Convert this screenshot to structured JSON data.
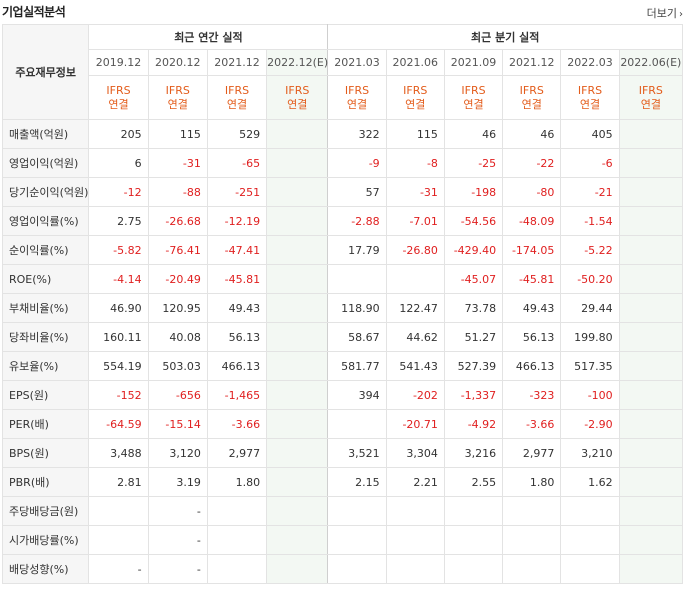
{
  "header": {
    "title": "기업실적분석",
    "more_label": "더보기",
    "more_chevron": "›"
  },
  "table": {
    "label_header": "주요재무정보",
    "annual_group": "최근 연간 실적",
    "quarter_group": "최근 분기 실적",
    "periods": [
      "2019.12",
      "2020.12",
      "2021.12",
      "2022.12(E)",
      "2021.03",
      "2021.06",
      "2021.09",
      "2021.12",
      "2022.03",
      "2022.06(E)"
    ],
    "ifrs_line1": "IFRS",
    "ifrs_line2": "연결",
    "rows": [
      {
        "label": "매출액(억원)",
        "values": [
          "205",
          "115",
          "529",
          "",
          "322",
          "115",
          "46",
          "46",
          "405",
          ""
        ]
      },
      {
        "label": "영업이익(억원)",
        "values": [
          "6",
          "-31",
          "-65",
          "",
          "-9",
          "-8",
          "-25",
          "-22",
          "-6",
          ""
        ]
      },
      {
        "label": "당기순이익(억원)",
        "values": [
          "-12",
          "-88",
          "-251",
          "",
          "57",
          "-31",
          "-198",
          "-80",
          "-21",
          ""
        ]
      },
      {
        "label": "영업이익률(%)",
        "values": [
          "2.75",
          "-26.68",
          "-12.19",
          "",
          "-2.88",
          "-7.01",
          "-54.56",
          "-48.09",
          "-1.54",
          ""
        ]
      },
      {
        "label": "순이익률(%)",
        "values": [
          "-5.82",
          "-76.41",
          "-47.41",
          "",
          "17.79",
          "-26.80",
          "-429.40",
          "-174.05",
          "-5.22",
          ""
        ]
      },
      {
        "label": "ROE(%)",
        "values": [
          "-4.14",
          "-20.49",
          "-45.81",
          "",
          "",
          "",
          "-45.07",
          "-45.81",
          "-50.20",
          ""
        ]
      },
      {
        "label": "부채비율(%)",
        "values": [
          "46.90",
          "120.95",
          "49.43",
          "",
          "118.90",
          "122.47",
          "73.78",
          "49.43",
          "29.44",
          ""
        ]
      },
      {
        "label": "당좌비율(%)",
        "values": [
          "160.11",
          "40.08",
          "56.13",
          "",
          "58.67",
          "44.62",
          "51.27",
          "56.13",
          "199.80",
          ""
        ]
      },
      {
        "label": "유보율(%)",
        "values": [
          "554.19",
          "503.03",
          "466.13",
          "",
          "581.77",
          "541.43",
          "527.39",
          "466.13",
          "517.35",
          ""
        ]
      },
      {
        "label": "EPS(원)",
        "values": [
          "-152",
          "-656",
          "-1,465",
          "",
          "394",
          "-202",
          "-1,337",
          "-323",
          "-100",
          ""
        ]
      },
      {
        "label": "PER(배)",
        "values": [
          "-64.59",
          "-15.14",
          "-3.66",
          "",
          "",
          "-20.71",
          "-4.92",
          "-3.66",
          "-2.90",
          ""
        ]
      },
      {
        "label": "BPS(원)",
        "values": [
          "3,488",
          "3,120",
          "2,977",
          "",
          "3,521",
          "3,304",
          "3,216",
          "2,977",
          "3,210",
          ""
        ]
      },
      {
        "label": "PBR(배)",
        "values": [
          "2.81",
          "3.19",
          "1.80",
          "",
          "2.15",
          "2.21",
          "2.55",
          "1.80",
          "1.62",
          ""
        ]
      },
      {
        "label": "주당배당금(원)",
        "values": [
          "",
          "-",
          "",
          "",
          "",
          "",
          "",
          "",
          "",
          ""
        ]
      },
      {
        "label": "시가배당률(%)",
        "values": [
          "",
          "-",
          "",
          "",
          "",
          "",
          "",
          "",
          "",
          ""
        ]
      },
      {
        "label": "배당성향(%)",
        "values": [
          "-",
          "-",
          "",
          "",
          "",
          "",
          "",
          "",
          "",
          ""
        ]
      }
    ]
  },
  "colors": {
    "negative": "#e02020",
    "ifrs": "#e35c1b",
    "estimate_bg": "#f3f8f3",
    "label_bg": "#f6f6f6"
  }
}
